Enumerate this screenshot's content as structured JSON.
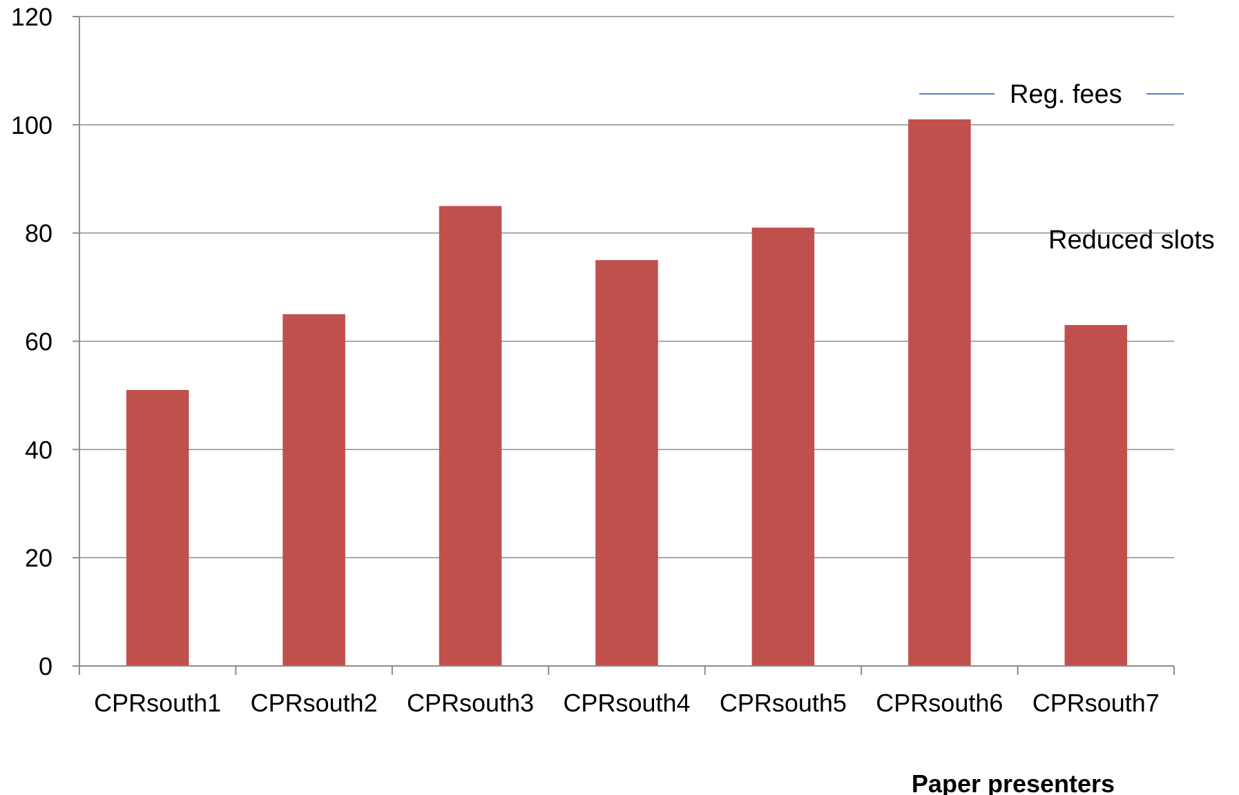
{
  "chart_data": {
    "type": "bar",
    "categories": [
      "CPRsouth1",
      "CPRsouth2",
      "CPRsouth3",
      "CPRsouth4",
      "CPRsouth5",
      "CPRsouth6",
      "CPRsouth7"
    ],
    "values": [
      51,
      65,
      85,
      75,
      81,
      101,
      63
    ],
    "xlabel": "Paper presenters",
    "ylabel": "",
    "ylim": [
      0,
      120
    ],
    "yticks": [
      0,
      20,
      40,
      60,
      80,
      100,
      120
    ],
    "grid": true,
    "bar_color": "#c0504d",
    "annotations": [
      {
        "text": "Reg. fees",
        "line_color": "#4f81bd"
      },
      {
        "text": "Reduced slots"
      }
    ]
  }
}
